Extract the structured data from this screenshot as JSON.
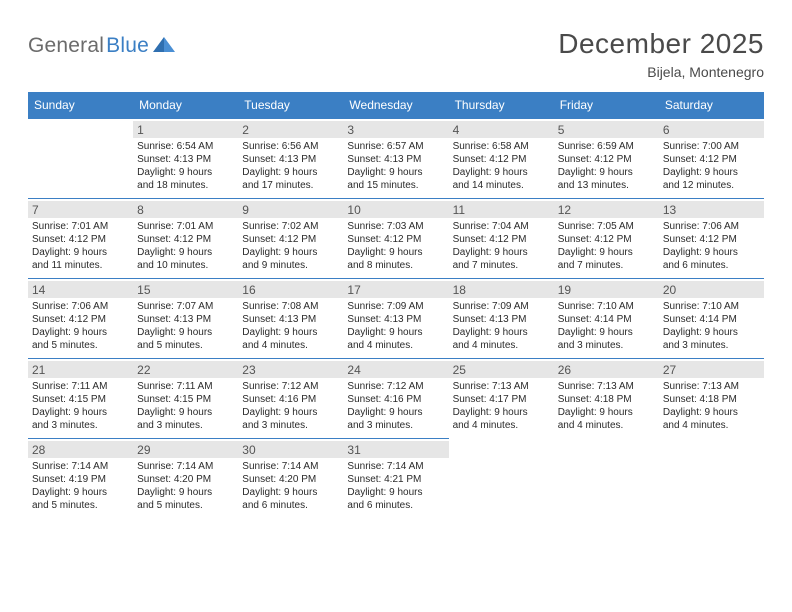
{
  "logo": {
    "text1": "General",
    "text2": "Blue"
  },
  "title": "December 2025",
  "location": "Bijela, Montenegro",
  "header_bg": "#3b7fc4",
  "day_headers": [
    "Sunday",
    "Monday",
    "Tuesday",
    "Wednesday",
    "Thursday",
    "Friday",
    "Saturday"
  ],
  "weeks": [
    [
      null,
      {
        "n": "1",
        "sr": "6:54 AM",
        "ss": "4:13 PM",
        "dl": "9 hours",
        "dm": "and 18 minutes."
      },
      {
        "n": "2",
        "sr": "6:56 AM",
        "ss": "4:13 PM",
        "dl": "9 hours",
        "dm": "and 17 minutes."
      },
      {
        "n": "3",
        "sr": "6:57 AM",
        "ss": "4:13 PM",
        "dl": "9 hours",
        "dm": "and 15 minutes."
      },
      {
        "n": "4",
        "sr": "6:58 AM",
        "ss": "4:12 PM",
        "dl": "9 hours",
        "dm": "and 14 minutes."
      },
      {
        "n": "5",
        "sr": "6:59 AM",
        "ss": "4:12 PM",
        "dl": "9 hours",
        "dm": "and 13 minutes."
      },
      {
        "n": "6",
        "sr": "7:00 AM",
        "ss": "4:12 PM",
        "dl": "9 hours",
        "dm": "and 12 minutes."
      }
    ],
    [
      {
        "n": "7",
        "sr": "7:01 AM",
        "ss": "4:12 PM",
        "dl": "9 hours",
        "dm": "and 11 minutes."
      },
      {
        "n": "8",
        "sr": "7:01 AM",
        "ss": "4:12 PM",
        "dl": "9 hours",
        "dm": "and 10 minutes."
      },
      {
        "n": "9",
        "sr": "7:02 AM",
        "ss": "4:12 PM",
        "dl": "9 hours",
        "dm": "and 9 minutes."
      },
      {
        "n": "10",
        "sr": "7:03 AM",
        "ss": "4:12 PM",
        "dl": "9 hours",
        "dm": "and 8 minutes."
      },
      {
        "n": "11",
        "sr": "7:04 AM",
        "ss": "4:12 PM",
        "dl": "9 hours",
        "dm": "and 7 minutes."
      },
      {
        "n": "12",
        "sr": "7:05 AM",
        "ss": "4:12 PM",
        "dl": "9 hours",
        "dm": "and 7 minutes."
      },
      {
        "n": "13",
        "sr": "7:06 AM",
        "ss": "4:12 PM",
        "dl": "9 hours",
        "dm": "and 6 minutes."
      }
    ],
    [
      {
        "n": "14",
        "sr": "7:06 AM",
        "ss": "4:12 PM",
        "dl": "9 hours",
        "dm": "and 5 minutes."
      },
      {
        "n": "15",
        "sr": "7:07 AM",
        "ss": "4:13 PM",
        "dl": "9 hours",
        "dm": "and 5 minutes."
      },
      {
        "n": "16",
        "sr": "7:08 AM",
        "ss": "4:13 PM",
        "dl": "9 hours",
        "dm": "and 4 minutes."
      },
      {
        "n": "17",
        "sr": "7:09 AM",
        "ss": "4:13 PM",
        "dl": "9 hours",
        "dm": "and 4 minutes."
      },
      {
        "n": "18",
        "sr": "7:09 AM",
        "ss": "4:13 PM",
        "dl": "9 hours",
        "dm": "and 4 minutes."
      },
      {
        "n": "19",
        "sr": "7:10 AM",
        "ss": "4:14 PM",
        "dl": "9 hours",
        "dm": "and 3 minutes."
      },
      {
        "n": "20",
        "sr": "7:10 AM",
        "ss": "4:14 PM",
        "dl": "9 hours",
        "dm": "and 3 minutes."
      }
    ],
    [
      {
        "n": "21",
        "sr": "7:11 AM",
        "ss": "4:15 PM",
        "dl": "9 hours",
        "dm": "and 3 minutes."
      },
      {
        "n": "22",
        "sr": "7:11 AM",
        "ss": "4:15 PM",
        "dl": "9 hours",
        "dm": "and 3 minutes."
      },
      {
        "n": "23",
        "sr": "7:12 AM",
        "ss": "4:16 PM",
        "dl": "9 hours",
        "dm": "and 3 minutes."
      },
      {
        "n": "24",
        "sr": "7:12 AM",
        "ss": "4:16 PM",
        "dl": "9 hours",
        "dm": "and 3 minutes."
      },
      {
        "n": "25",
        "sr": "7:13 AM",
        "ss": "4:17 PM",
        "dl": "9 hours",
        "dm": "and 4 minutes."
      },
      {
        "n": "26",
        "sr": "7:13 AM",
        "ss": "4:18 PM",
        "dl": "9 hours",
        "dm": "and 4 minutes."
      },
      {
        "n": "27",
        "sr": "7:13 AM",
        "ss": "4:18 PM",
        "dl": "9 hours",
        "dm": "and 4 minutes."
      }
    ],
    [
      {
        "n": "28",
        "sr": "7:14 AM",
        "ss": "4:19 PM",
        "dl": "9 hours",
        "dm": "and 5 minutes."
      },
      {
        "n": "29",
        "sr": "7:14 AM",
        "ss": "4:20 PM",
        "dl": "9 hours",
        "dm": "and 5 minutes."
      },
      {
        "n": "30",
        "sr": "7:14 AM",
        "ss": "4:20 PM",
        "dl": "9 hours",
        "dm": "and 6 minutes."
      },
      {
        "n": "31",
        "sr": "7:14 AM",
        "ss": "4:21 PM",
        "dl": "9 hours",
        "dm": "and 6 minutes."
      },
      null,
      null,
      null
    ]
  ],
  "labels": {
    "sunrise_prefix": "Sunrise: ",
    "sunset_prefix": "Sunset: ",
    "daylight_prefix": "Daylight: "
  }
}
